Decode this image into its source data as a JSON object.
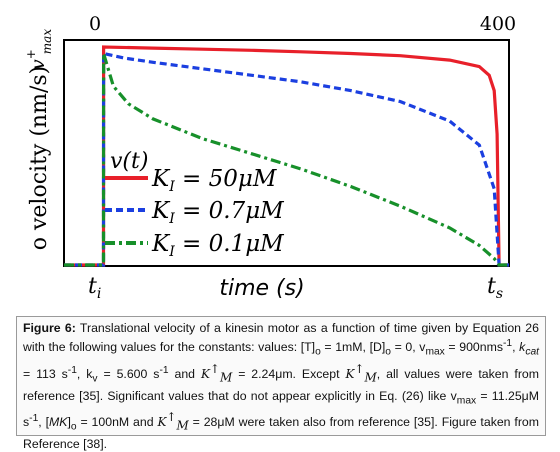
{
  "chart_data": {
    "type": "line",
    "x_ticks_top": [
      "0",
      "400"
    ],
    "x_ticks_bottom": [
      "t",
      "i",
      "t",
      "s"
    ],
    "xlabel": "time (s)",
    "ylabel": "o velocity (nm/s)",
    "y_top_label": "v",
    "y_top_sup": "+",
    "y_top_sub": "max",
    "legend_title": "v(t)",
    "xlim": [
      -40,
      410
    ],
    "ylim": [
      0,
      1
    ],
    "series": [
      {
        "name": "K_I = 50μM",
        "label_sym": "K",
        "label_sub": "I",
        "label_rest": " = 50μM",
        "color": "#e8202a",
        "dash": "solid",
        "x": [
          -40,
          -0.1,
          0,
          50,
          100,
          150,
          200,
          250,
          300,
          350,
          380,
          390,
          395,
          398,
          400,
          400.1,
          410
        ],
        "y": [
          0,
          0,
          1.0,
          0.995,
          0.99,
          0.985,
          0.978,
          0.97,
          0.96,
          0.94,
          0.91,
          0.87,
          0.8,
          0.6,
          0.0,
          0,
          0
        ]
      },
      {
        "name": "K_I = 0.7μM",
        "label_sym": "K",
        "label_sub": "I",
        "label_rest": " = 0.7μM",
        "color": "#1b3fe0",
        "dash": "dashed",
        "x": [
          -40,
          -0.1,
          0,
          20,
          50,
          100,
          150,
          200,
          250,
          300,
          350,
          380,
          395,
          400,
          400.1,
          410
        ],
        "y": [
          0,
          0,
          0.97,
          0.95,
          0.93,
          0.9,
          0.87,
          0.84,
          0.8,
          0.75,
          0.66,
          0.55,
          0.35,
          0.0,
          0,
          0
        ]
      },
      {
        "name": "K_I = 0.1μM",
        "label_sym": "K",
        "label_sub": "I",
        "label_rest": " = 0.1μM",
        "color": "#17902a",
        "dash": "dashdot",
        "x": [
          -40,
          -0.1,
          0,
          10,
          25,
          50,
          100,
          150,
          200,
          250,
          300,
          350,
          380,
          395,
          400,
          400.1,
          410
        ],
        "y": [
          0,
          0,
          0.97,
          0.82,
          0.74,
          0.67,
          0.58,
          0.51,
          0.44,
          0.36,
          0.27,
          0.17,
          0.09,
          0.03,
          0.0,
          0,
          0
        ]
      }
    ]
  },
  "caption": {
    "label": "Figure 6:",
    "p1": " Translational velocity of a kinesin motor as a function of time given by Equation 26 with the following values for the constants: values: [T]",
    "p1_sub": "o",
    "p2": " = 1mM, [D]",
    "p2_sub": "o",
    "p3": " = 0, v",
    "p3_sub": "max",
    "p4": " = 900nms",
    "p4_sup": "-1",
    "p5": ", ",
    "kcat": "k",
    "kcat_sub": "cat",
    "p6": " = 113 s",
    "p6_sup": "-1",
    "p7": ", k",
    "p7_sub": "v",
    "p8": " = 5.600 s",
    "p8_sup": "-1",
    "p9": " and ",
    "km1": "K",
    "km1_sup": "↑",
    "km1_sub": "M",
    "p10": " = 2.24μm. Except ",
    "km2": "K",
    "km2_sup": "↑",
    "km2_sub": "M",
    "p11": ", all values were taken from reference [35]. Significant values that do not appear explicitly in Eq. (26) like v",
    "p11_sub": "max",
    "p12": " = 11.25μM s",
    "p12_sup": "-1",
    "p13": ", [",
    "mk": "MK",
    "p14": "]",
    "p14_sub": "o",
    "p15": " = 100nM and ",
    "km3": "K",
    "km3_sup": "↑",
    "km3_sub": "M",
    "p16": " = 28μM were taken also from reference [35]. Figure taken from Reference [38]."
  }
}
